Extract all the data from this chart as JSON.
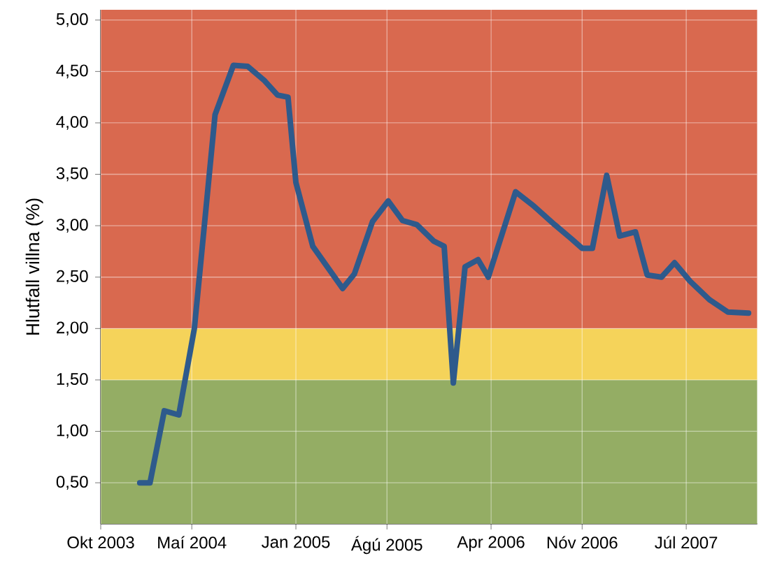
{
  "chart_data": {
    "type": "line",
    "ylabel": "Hlutfall villna (%)",
    "x": [
      "2004-01-01",
      "2004-01-25",
      "2004-02-28",
      "2004-04-01",
      "2004-05-07",
      "2004-06-25",
      "2004-08-07",
      "2004-09-10",
      "2004-10-19",
      "2004-11-19",
      "2004-12-13",
      "2005-01-01",
      "2005-02-10",
      "2005-04-19",
      "2005-05-16",
      "2005-06-28",
      "2005-08-04",
      "2005-09-07",
      "2005-10-10",
      "2005-11-19",
      "2005-12-13",
      "2006-01-04",
      "2006-02-01",
      "2006-03-01",
      "2006-03-25",
      "2006-05-28",
      "2006-07-10",
      "2006-08-28",
      "2006-10-07",
      "2006-11-01",
      "2006-11-25",
      "2006-12-28",
      "2007-01-28",
      "2007-03-04",
      "2007-04-01",
      "2007-05-04",
      "2007-06-04",
      "2007-07-10",
      "2007-08-25",
      "2007-10-07",
      "2007-11-25"
    ],
    "series": [
      {
        "color": "#2e5a8c",
        "values": [
          0.5,
          0.5,
          1.2,
          1.16,
          2.0,
          4.08,
          4.56,
          4.55,
          4.41,
          4.27,
          4.25,
          3.42,
          2.8,
          2.39,
          2.53,
          3.04,
          3.24,
          3.05,
          3.01,
          2.85,
          2.8,
          1.47,
          2.6,
          2.67,
          2.5,
          3.33,
          3.19,
          3.01,
          2.87,
          2.78,
          2.78,
          3.49,
          2.9,
          2.94,
          2.52,
          2.5,
          2.64,
          2.46,
          2.28,
          2.16,
          2.15
        ]
      }
    ],
    "xlim": [
      "2003-10-01",
      "2007-12-15"
    ],
    "xticks": [
      {
        "value": "2003-10-01",
        "label": "Okt 2003"
      },
      {
        "value": "2004-05-01",
        "label": "Maí 2004"
      },
      {
        "value": "2005-01-01",
        "label": "Jan 2005"
      },
      {
        "value": "2005-08-01",
        "label": "Ágú 2005"
      },
      {
        "value": "2006-04-01",
        "label": "Apr 2006"
      },
      {
        "value": "2006-11-01",
        "label": "Nóv 2006"
      },
      {
        "value": "2007-07-01",
        "label": "Júl 2007"
      }
    ],
    "ylim": [
      0.1,
      5.1
    ],
    "yticks": [
      {
        "value": 0.5,
        "label": "0,50"
      },
      {
        "value": 1.0,
        "label": "1,00"
      },
      {
        "value": 1.5,
        "label": "1,50"
      },
      {
        "value": 2.0,
        "label": "2,00"
      },
      {
        "value": 2.5,
        "label": "2,50"
      },
      {
        "value": 3.0,
        "label": "3,00"
      },
      {
        "value": 3.5,
        "label": "3,50"
      },
      {
        "value": 4.0,
        "label": "4,00"
      },
      {
        "value": 4.5,
        "label": "4,50"
      },
      {
        "value": 5.0,
        "label": "5,00"
      }
    ],
    "bands": [
      {
        "axis": "y",
        "from": 0.1,
        "to": 1.5,
        "color": "#94ad64"
      },
      {
        "axis": "y",
        "from": 1.5,
        "to": 2.0,
        "color": "#f5d35a"
      },
      {
        "axis": "y",
        "from": 2.0,
        "to": 5.1,
        "color": "#d9694f"
      }
    ],
    "grid": true,
    "marker": "none",
    "line_style": "solid"
  }
}
